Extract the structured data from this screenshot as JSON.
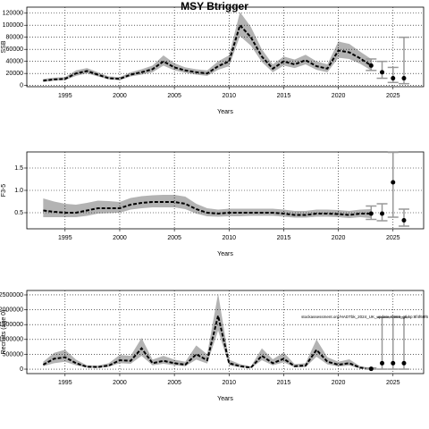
{
  "chart_data": [
    {
      "type": "line",
      "title": "MSY Btrigger",
      "ylabel": "SSB",
      "xlabel": "Years",
      "x": [
        1993,
        1994,
        1995,
        1996,
        1997,
        1998,
        1999,
        2000,
        2001,
        2002,
        2003,
        2004,
        2005,
        2006,
        2007,
        2008,
        2009,
        2010,
        2011,
        2012,
        2013,
        2014,
        2015,
        2016,
        2017,
        2018,
        2019,
        2020,
        2021,
        2022,
        2023
      ],
      "values": [
        8000,
        10000,
        11000,
        20000,
        24000,
        18000,
        12000,
        11000,
        18000,
        22000,
        27000,
        40000,
        30000,
        25000,
        22000,
        20000,
        32000,
        40000,
        100000,
        80000,
        48000,
        28000,
        40000,
        35000,
        42000,
        32000,
        28000,
        58000,
        55000,
        45000,
        33000
      ],
      "lower": [
        6000,
        8000,
        9000,
        16000,
        20000,
        15000,
        10000,
        9000,
        15000,
        18000,
        22000,
        33000,
        25000,
        21000,
        18000,
        16000,
        26000,
        32000,
        82000,
        66000,
        39000,
        22000,
        33000,
        29000,
        35000,
        26000,
        22000,
        46000,
        44000,
        36000,
        25000
      ],
      "upper": [
        11000,
        13000,
        14000,
        25000,
        29000,
        22000,
        15000,
        14000,
        22000,
        27000,
        33000,
        50000,
        37000,
        30000,
        27000,
        25000,
        40000,
        50000,
        122000,
        97000,
        60000,
        35000,
        48000,
        43000,
        51000,
        40000,
        35000,
        73000,
        69000,
        56000,
        44000
      ],
      "projection": {
        "x": [
          2023,
          2024,
          2025,
          2026
        ],
        "values": [
          33000,
          22000,
          12000,
          12000
        ],
        "lower": [
          25000,
          12000,
          5000,
          3000
        ],
        "upper": [
          44000,
          40000,
          30000,
          80000
        ]
      },
      "xlim": [
        1991.5,
        2027.8
      ],
      "xticks": [
        1995,
        2000,
        2005,
        2010,
        2015,
        2020,
        2025
      ],
      "ylim": [
        -2000,
        130000
      ],
      "yticks": [
        0,
        20000,
        40000,
        60000,
        80000,
        100000,
        120000
      ],
      "grid": true
    },
    {
      "type": "line",
      "ylabel": "F3-5",
      "xlabel": "Years",
      "x": [
        1993,
        1994,
        1995,
        1996,
        1997,
        1998,
        1999,
        2000,
        2001,
        2002,
        2003,
        2004,
        2005,
        2006,
        2007,
        2008,
        2009,
        2010,
        2011,
        2012,
        2013,
        2014,
        2015,
        2016,
        2017,
        2018,
        2019,
        2020,
        2021,
        2022,
        2023
      ],
      "values": [
        0.55,
        0.52,
        0.5,
        0.5,
        0.55,
        0.6,
        0.6,
        0.6,
        0.68,
        0.72,
        0.74,
        0.74,
        0.74,
        0.7,
        0.58,
        0.5,
        0.48,
        0.5,
        0.5,
        0.5,
        0.5,
        0.5,
        0.48,
        0.45,
        0.45,
        0.48,
        0.48,
        0.47,
        0.45,
        0.48,
        0.48
      ],
      "lower": [
        0.4,
        0.4,
        0.4,
        0.4,
        0.43,
        0.48,
        0.49,
        0.5,
        0.57,
        0.6,
        0.62,
        0.62,
        0.62,
        0.58,
        0.48,
        0.42,
        0.41,
        0.42,
        0.42,
        0.43,
        0.43,
        0.43,
        0.41,
        0.39,
        0.39,
        0.41,
        0.41,
        0.4,
        0.38,
        0.4,
        0.38
      ],
      "upper": [
        0.82,
        0.75,
        0.7,
        0.68,
        0.72,
        0.77,
        0.76,
        0.74,
        0.83,
        0.87,
        0.89,
        0.9,
        0.9,
        0.86,
        0.7,
        0.6,
        0.57,
        0.59,
        0.59,
        0.59,
        0.59,
        0.59,
        0.57,
        0.54,
        0.54,
        0.57,
        0.57,
        0.56,
        0.54,
        0.57,
        0.58
      ],
      "projection": {
        "x": [
          2023,
          2024,
          2025,
          2026
        ],
        "values": [
          0.48,
          0.48,
          1.18,
          0.33
        ],
        "lower": [
          0.35,
          0.32,
          0.4,
          0.2
        ],
        "upper": [
          0.65,
          0.7,
          1.85,
          0.58
        ]
      },
      "xlim": [
        1991.5,
        2027.8
      ],
      "xticks": [
        1995,
        2000,
        2005,
        2010,
        2015,
        2020,
        2025
      ],
      "ylim": [
        0.14,
        1.86
      ],
      "yticks": [
        0.5,
        {
          "value": 1.0,
          "label": "1.0"
        },
        1.5
      ],
      "grid": true
    },
    {
      "type": "line",
      "ylabel": "Recruits (age 0)",
      "xlabel": "Years",
      "annotation": "stockassessment.org/HADTbk_2024_UK_update,r0969_gtl,hp:8f4f60f6",
      "x": [
        1993,
        1994,
        1995,
        1996,
        1997,
        1998,
        1999,
        2000,
        2001,
        2002,
        2003,
        2004,
        2005,
        2006,
        2007,
        2008,
        2009,
        2010,
        2011,
        2012,
        2013,
        2014,
        2015,
        2016,
        2017,
        2018,
        2019,
        2020,
        2021,
        2022,
        2023
      ],
      "values": [
        150000,
        350000,
        400000,
        200000,
        80000,
        70000,
        120000,
        300000,
        280000,
        700000,
        200000,
        280000,
        200000,
        150000,
        500000,
        300000,
        1800000,
        200000,
        100000,
        50000,
        450000,
        200000,
        350000,
        100000,
        120000,
        650000,
        250000,
        150000,
        200000,
        50000,
        10000
      ],
      "lower": [
        100000,
        200000,
        250000,
        130000,
        50000,
        40000,
        80000,
        200000,
        180000,
        450000,
        130000,
        180000,
        130000,
        100000,
        320000,
        190000,
        1300000,
        130000,
        60000,
        30000,
        300000,
        130000,
        230000,
        60000,
        70000,
        420000,
        160000,
        90000,
        120000,
        20000,
        0
      ],
      "upper": [
        250000,
        550000,
        650000,
        320000,
        130000,
        120000,
        200000,
        480000,
        450000,
        1050000,
        320000,
        450000,
        320000,
        250000,
        800000,
        500000,
        2550000,
        320000,
        170000,
        90000,
        700000,
        330000,
        560000,
        170000,
        200000,
        1000000,
        400000,
        250000,
        330000,
        100000,
        40000
      ],
      "projection": {
        "x": [
          2023,
          2024,
          2025,
          2026
        ],
        "values": [
          10000,
          200000,
          200000,
          200000
        ],
        "lower": [
          0,
          0,
          0,
          0
        ],
        "upper": [
          40000,
          1750000,
          1750000,
          1750000
        ]
      },
      "xlim": [
        1991.5,
        2027.8
      ],
      "xticks": [
        1995,
        2000,
        2005,
        2010,
        2015,
        2020,
        2025
      ],
      "ylim": [
        -150000,
        2650000
      ],
      "yticks": [
        0,
        500000,
        1000000,
        1500000,
        2000000,
        2500000
      ],
      "grid": true
    }
  ]
}
